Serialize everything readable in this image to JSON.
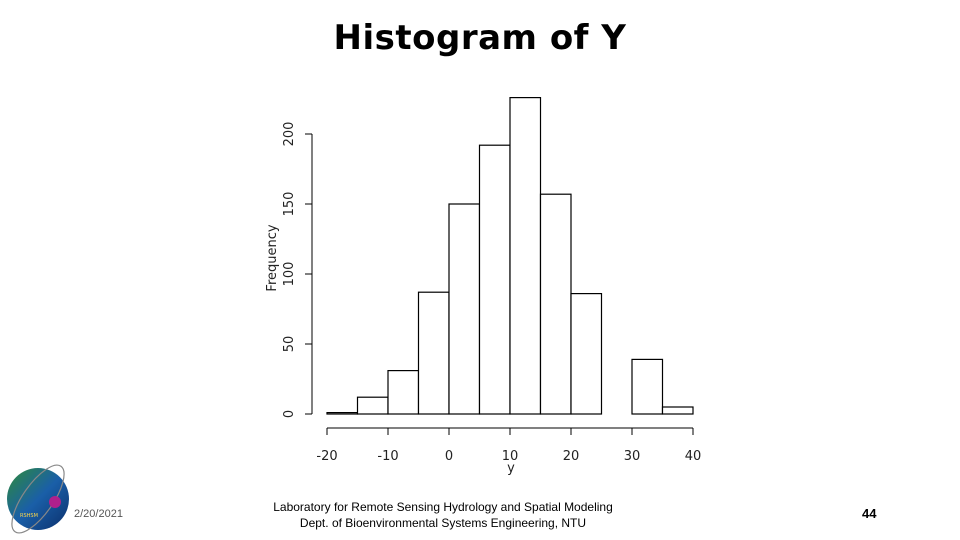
{
  "slide": {
    "title": "Histogram of Y",
    "date": "2/20/2021",
    "lab_line1": "Laboratory for Remote Sensing Hydrology and Spatial Modeling",
    "lab_line2": "Dept. of Bioenvironmental Systems Engineering, NTU",
    "page_number": "44",
    "logo_text": "RSHSM"
  },
  "chart_data": {
    "type": "bar",
    "title": "",
    "xlabel": "y",
    "ylabel": "Frequency",
    "bin_width": 5,
    "bin_starts": [
      -20,
      -15,
      -10,
      -5,
      0,
      5,
      10,
      15,
      20,
      25,
      30,
      35
    ],
    "values": [
      1,
      12,
      31,
      87,
      150,
      192,
      226,
      157,
      86,
      0,
      39,
      5
    ],
    "xlim": [
      -20,
      40
    ],
    "ylim": [
      0,
      200
    ],
    "xticks": [
      "-20",
      "-10",
      "0",
      "10",
      "20",
      "30",
      "40"
    ],
    "yticks": [
      "0",
      "50",
      "100",
      "150",
      "200"
    ],
    "grid": false,
    "bar_fill": "#ffffff",
    "bar_stroke": "#000000"
  }
}
